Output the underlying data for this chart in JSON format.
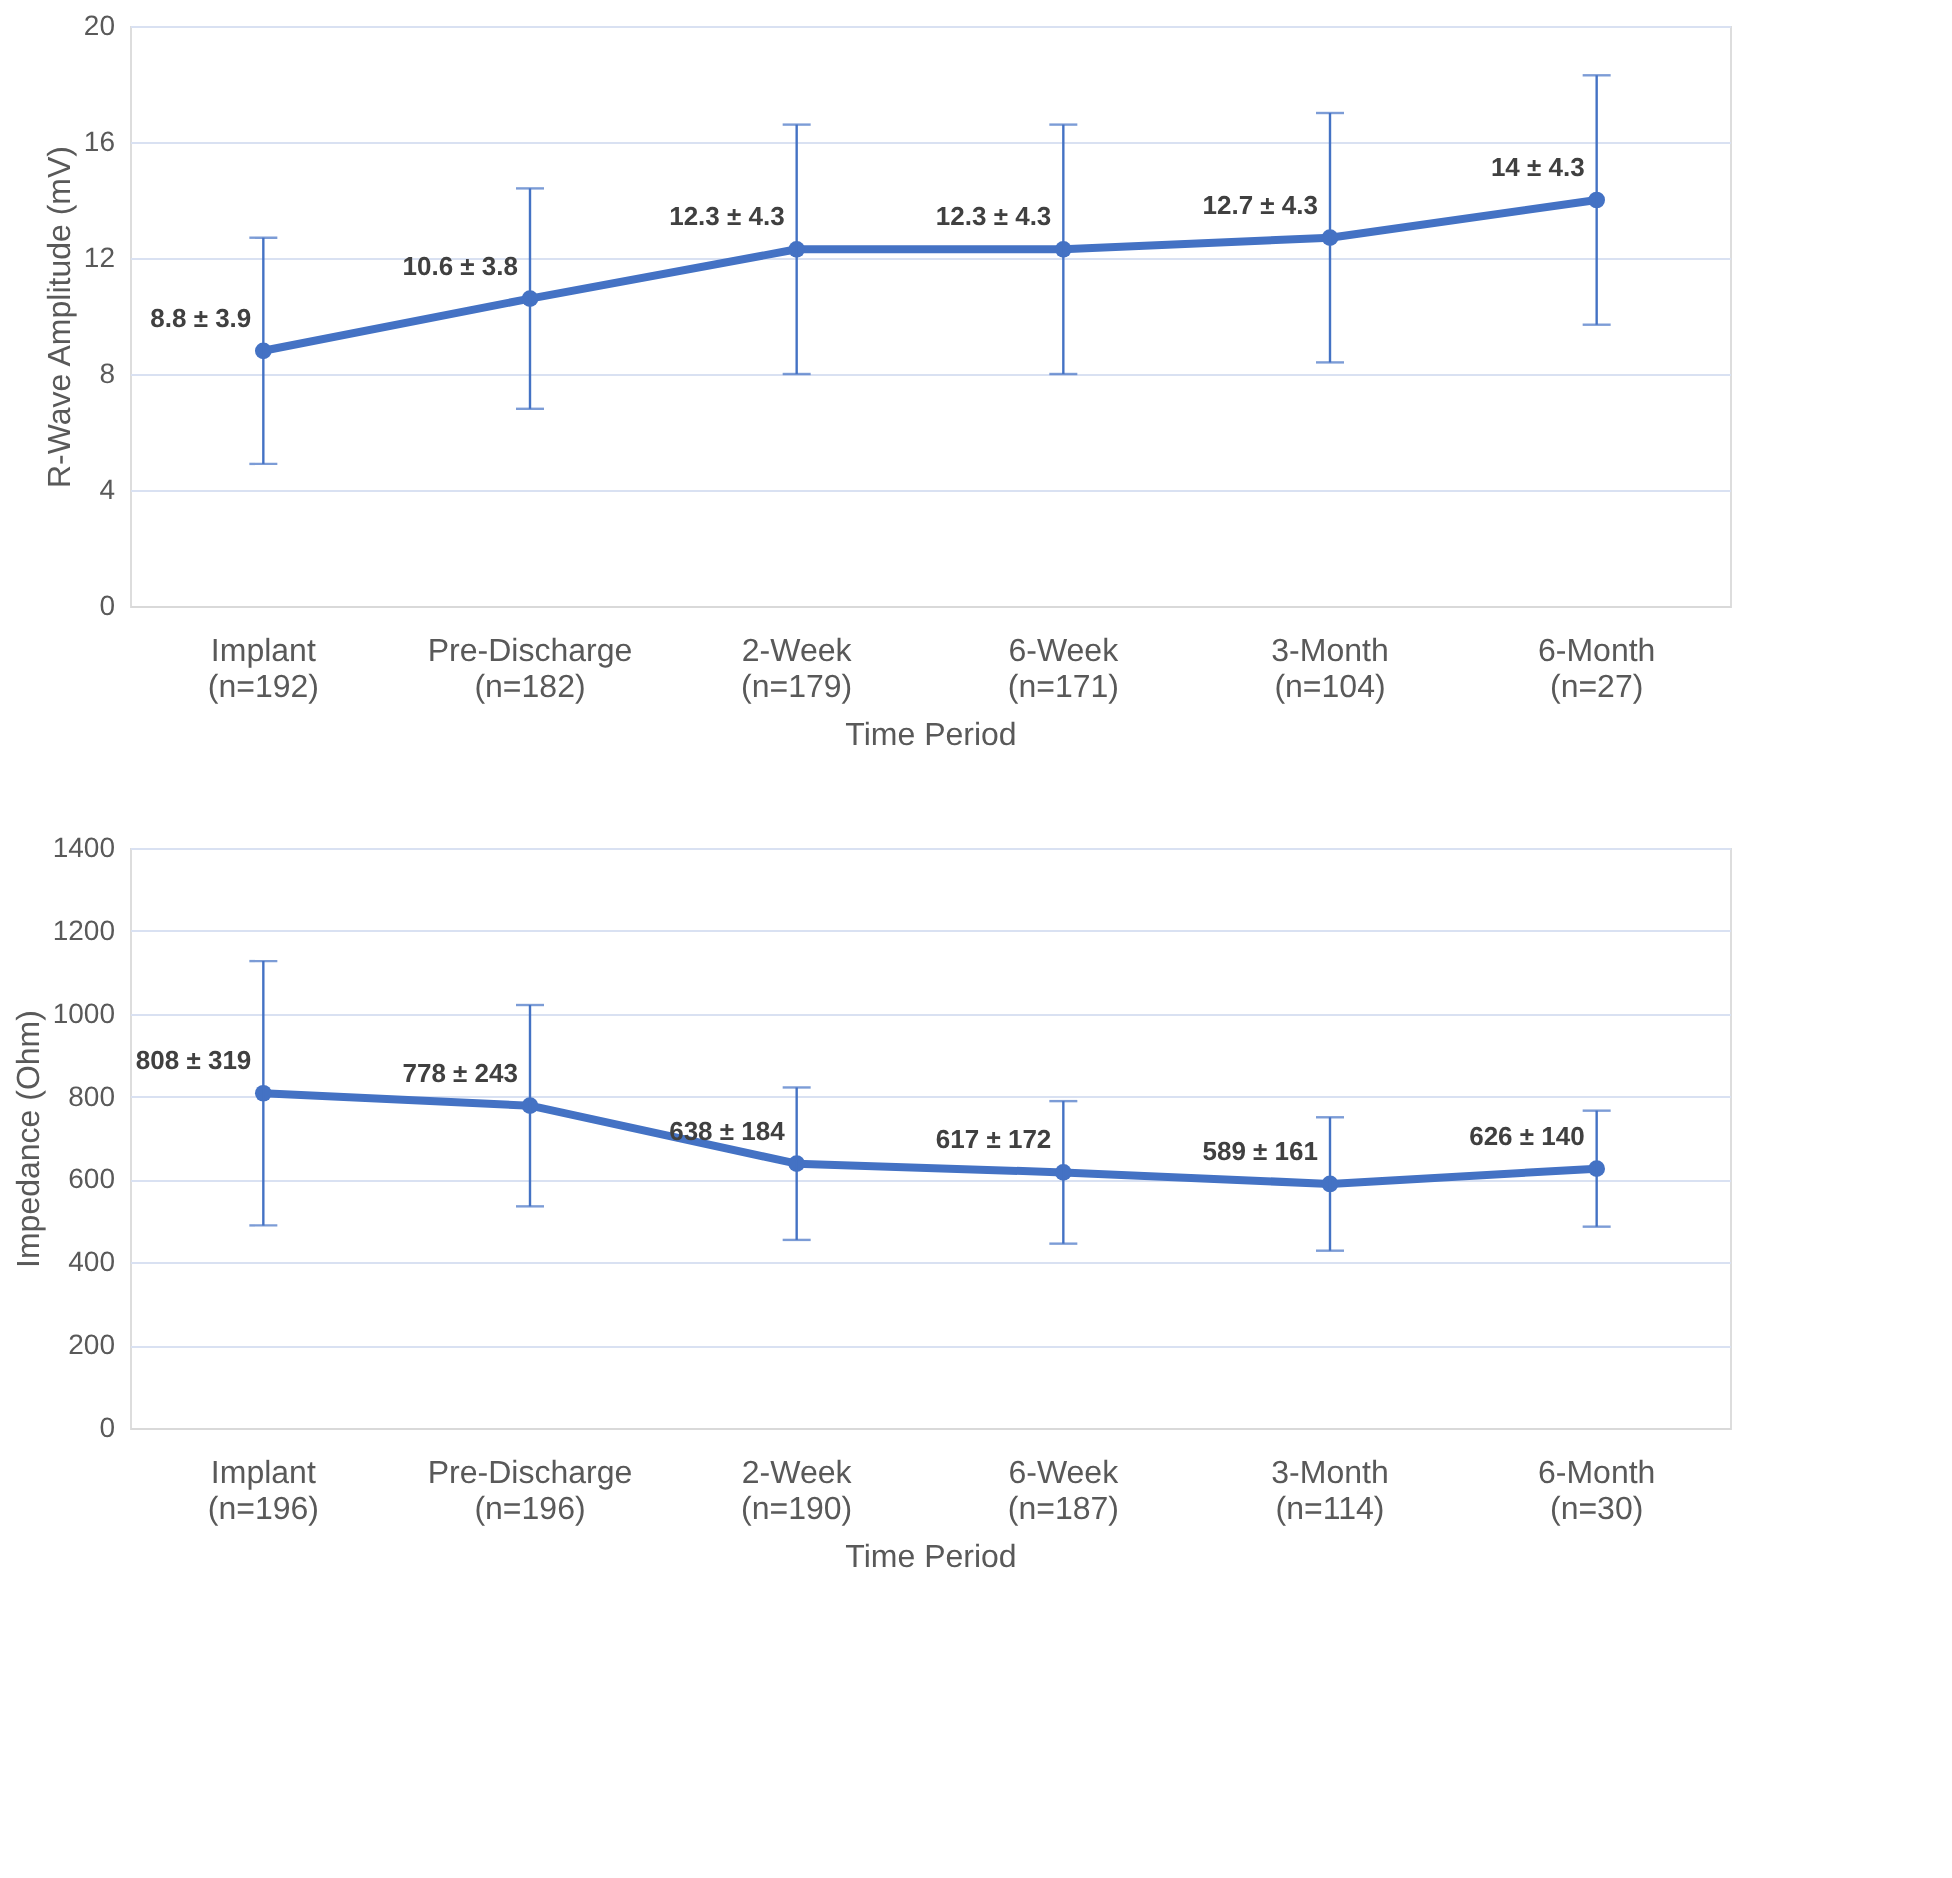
{
  "chart_data": [
    {
      "type": "line",
      "xlabel": "Time Period",
      "ylabel": "R-Wave Amplitude (mV)",
      "categories": [
        "Implant\n(n=192)",
        "Pre-Discharge\n(n=182)",
        "2-Week\n(n=179)",
        "6-Week\n(n=171)",
        "3-Month\n(n=104)",
        "6-Month\n(n=27)"
      ],
      "series": [
        {
          "color": "#4472c4",
          "values": [
            8.8,
            10.6,
            12.3,
            12.3,
            12.7,
            14
          ],
          "errors": [
            3.9,
            3.8,
            4.3,
            4.3,
            4.3,
            4.3
          ],
          "value_labels": [
            "8.8 ± 3.9",
            "10.6 ± 3.8",
            "12.3 ± 4.3",
            "12.3 ± 4.3",
            "12.7 ± 4.3",
            "14 ± 4.3"
          ]
        }
      ],
      "ylim": [
        0,
        20
      ],
      "yticks": [
        0,
        4,
        8,
        12,
        16,
        20
      ],
      "grid": "y",
      "marker": "circle",
      "line_style": "solid"
    },
    {
      "type": "line",
      "xlabel": "Time Period",
      "ylabel": "Impedance (Ohm)",
      "categories": [
        "Implant\n(n=196)",
        "Pre-Discharge\n(n=196)",
        "2-Week\n(n=190)",
        "6-Week\n(n=187)",
        "3-Month\n(n=114)",
        "6-Month\n(n=30)"
      ],
      "series": [
        {
          "color": "#4472c4",
          "values": [
            808,
            778,
            638,
            617,
            589,
            626
          ],
          "errors": [
            319,
            243,
            184,
            172,
            161,
            140
          ],
          "value_labels": [
            "808 ± 319",
            "778 ± 243",
            "638 ± 184",
            "617 ± 172",
            "589 ± 161",
            "626 ± 140"
          ]
        }
      ],
      "ylim": [
        0,
        1400
      ],
      "yticks": [
        0,
        200,
        400,
        600,
        800,
        {
          "value": 1000,
          "label": "1000"
        },
        {
          "value": 1200,
          "label": "1200"
        },
        {
          "value": 1400,
          "label": "1400"
        }
      ],
      "grid": "y",
      "marker": "circle",
      "line_style": "solid"
    }
  ]
}
